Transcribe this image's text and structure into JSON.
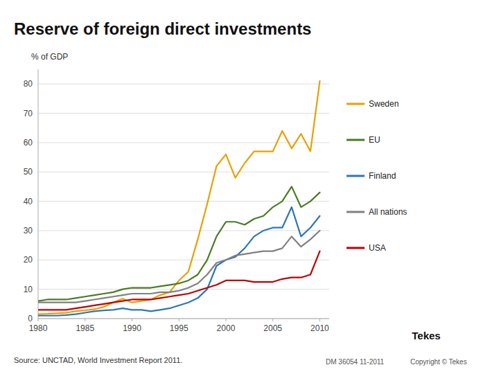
{
  "chart_data": {
    "type": "line",
    "title": "Reserve of foreign direct investments",
    "ylabel": "% of GDP",
    "annotations": [
      "Source: UNCTAD, World Investment Report 2011.",
      "DM 36054  11-2011",
      "Copyright © Tekes",
      "Tekes"
    ],
    "x": [
      1980,
      1981,
      1982,
      1983,
      1984,
      1985,
      1986,
      1987,
      1988,
      1989,
      1990,
      1991,
      1992,
      1993,
      1994,
      1995,
      1996,
      1997,
      1998,
      1999,
      2000,
      2001,
      2002,
      2003,
      2004,
      2005,
      2006,
      2007,
      2008,
      2009,
      2010
    ],
    "series": [
      {
        "name": "Sweden",
        "color": "#E8A000",
        "values": [
          1.5,
          1.6,
          1.8,
          2.0,
          2.5,
          2.8,
          3.2,
          4.0,
          5.5,
          6.8,
          5.5,
          6.0,
          6.5,
          8.0,
          9.0,
          13.0,
          16.0,
          27.0,
          39.0,
          52.0,
          56.0,
          48.0,
          53.0,
          57.0,
          57.0,
          57.0,
          64.0,
          58.0,
          63.0,
          57.0,
          81.0
        ]
      },
      {
        "name": "EU",
        "color": "#4A7A22",
        "values": [
          6.0,
          6.5,
          6.5,
          6.5,
          7.0,
          7.5,
          8.0,
          8.5,
          9.0,
          10.0,
          10.5,
          10.5,
          10.5,
          11.0,
          11.5,
          12.0,
          13.0,
          15.0,
          20.0,
          28.0,
          33.0,
          33.0,
          32.0,
          34.0,
          35.0,
          38.0,
          40.0,
          45.0,
          38.0,
          40.0,
          43.0
        ]
      },
      {
        "name": "Finland",
        "color": "#2E75B6",
        "values": [
          1.0,
          1.0,
          1.0,
          1.2,
          1.5,
          2.0,
          2.5,
          2.8,
          3.0,
          3.5,
          3.0,
          3.0,
          2.5,
          3.0,
          3.5,
          4.5,
          5.5,
          7.0,
          10.0,
          18.0,
          20.0,
          21.0,
          24.0,
          28.0,
          30.0,
          31.0,
          31.0,
          38.0,
          28.0,
          31.0,
          35.0
        ]
      },
      {
        "name": "All nations",
        "color": "#808080",
        "values": [
          5.5,
          5.5,
          5.5,
          5.5,
          5.5,
          6.0,
          6.5,
          7.0,
          7.5,
          8.0,
          8.5,
          8.5,
          8.5,
          9.0,
          9.0,
          9.5,
          10.5,
          12.0,
          15.0,
          19.0,
          20.0,
          21.5,
          22.0,
          22.5,
          23.0,
          23.0,
          24.0,
          28.0,
          24.5,
          27.0,
          30.0
        ]
      },
      {
        "name": "USA",
        "color": "#C00000",
        "values": [
          3.0,
          3.0,
          3.0,
          3.0,
          3.5,
          4.0,
          4.5,
          5.0,
          5.5,
          6.0,
          6.5,
          6.5,
          6.5,
          7.0,
          7.5,
          8.0,
          8.5,
          9.5,
          10.5,
          11.5,
          13.0,
          13.0,
          13.0,
          12.5,
          12.5,
          12.5,
          13.5,
          14.0,
          14.0,
          15.0,
          23.0
        ]
      }
    ],
    "xlim": [
      1980,
      2011
    ],
    "ylim": [
      0,
      85
    ],
    "xticks": [
      1980,
      1985,
      1990,
      1995,
      2000,
      2005,
      2010
    ],
    "yticks": [
      0,
      10,
      20,
      30,
      40,
      50,
      60,
      70,
      80
    ],
    "grid": true,
    "legend": "right"
  }
}
